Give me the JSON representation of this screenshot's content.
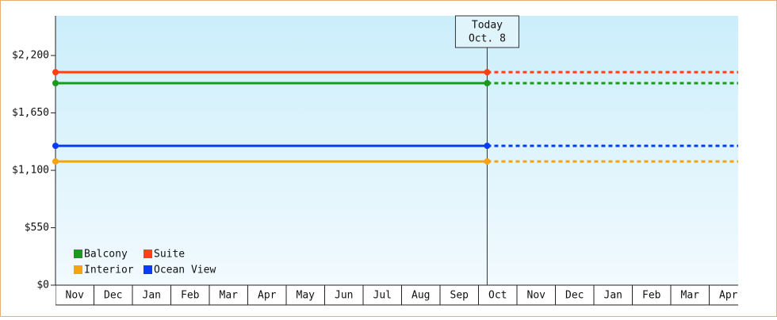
{
  "chart_data": {
    "type": "line",
    "categories": [
      "Nov",
      "Dec",
      "Jan",
      "Feb",
      "Mar",
      "Apr",
      "May",
      "Jun",
      "Jul",
      "Aug",
      "Sep",
      "Oct",
      "Nov",
      "Dec",
      "Jan",
      "Feb",
      "Mar",
      "Apr"
    ],
    "series": [
      {
        "name": "Balcony",
        "color": "#1a9a1a",
        "value": 1935
      },
      {
        "name": "Suite",
        "color": "#ff4010",
        "value": 2040
      },
      {
        "name": "Interior",
        "color": "#f5a312",
        "value": 1185
      },
      {
        "name": "Ocean View",
        "color": "#0a3cf5",
        "value": 1335
      }
    ],
    "ylim": [
      0,
      2580
    ],
    "yticks": [
      {
        "value": 0,
        "label": "$0"
      },
      {
        "value": 550,
        "label": "$550"
      },
      {
        "value": 1100,
        "label": "$1,100"
      },
      {
        "value": 1650,
        "label": "$1,650"
      },
      {
        "value": 2200,
        "label": "$2,200"
      }
    ],
    "annotation": {
      "title": "Today",
      "date": "Oct. 8"
    }
  }
}
